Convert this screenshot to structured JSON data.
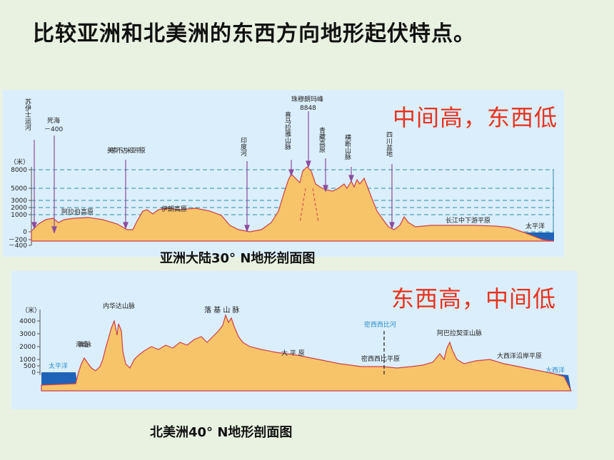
{
  "slide": {
    "title": "比较亚洲和北美洲的东西方向地形起伏特点。"
  },
  "asia": {
    "summary": "中间高，东西低",
    "caption": "亚洲大陆30° N地形剖面图",
    "unit": "（米）",
    "ticks": [
      "8000",
      "5000",
      "3000",
      "2000",
      "1000",
      "0",
      "－200",
      "－400"
    ],
    "labels": {
      "suez": "苏伊士运河",
      "deadsea": "死海",
      "deadsea_value": "－400",
      "mesopotamia": "美索不达米亚平原",
      "arabian": "阿拉伯高原",
      "iranian": "伊朗高原",
      "indus": "印度河",
      "everest": "珠穆朗玛峰",
      "everest_value": "8848",
      "himalaya": "喜马拉雅山脉",
      "tibet": "青藏高原",
      "hengduan": "横断山脉",
      "sichuan": "四川盆地",
      "yangtze": "长江中下游平原",
      "pacific": "太平洋"
    }
  },
  "namerica": {
    "summary": "东西高，中间低",
    "caption": "北美洲40° N地形剖面图",
    "unit": "（米）",
    "ticks": [
      "4000",
      "3000",
      "2000",
      "1000",
      "500",
      "0"
    ],
    "labels": {
      "pacific": "太平洋",
      "coast_range": "海岸山脉",
      "nevada": "内华达山脉",
      "rockies": "落 基 山 脉",
      "great_plains": "大 平 原",
      "mississippi": "密西西比河",
      "mississippi_plain": "密西西比平原",
      "appalachian": "阿巴拉契亚山脉",
      "atlantic_plain": "大西洋沿岸平原",
      "atlantic": "大西洋"
    }
  },
  "colors": {
    "land": "#f7c46a",
    "outline": "#cf3f4a",
    "sea": "#1f63b8",
    "arrow": "#8b4c9e",
    "summary": "#e8321e"
  }
}
